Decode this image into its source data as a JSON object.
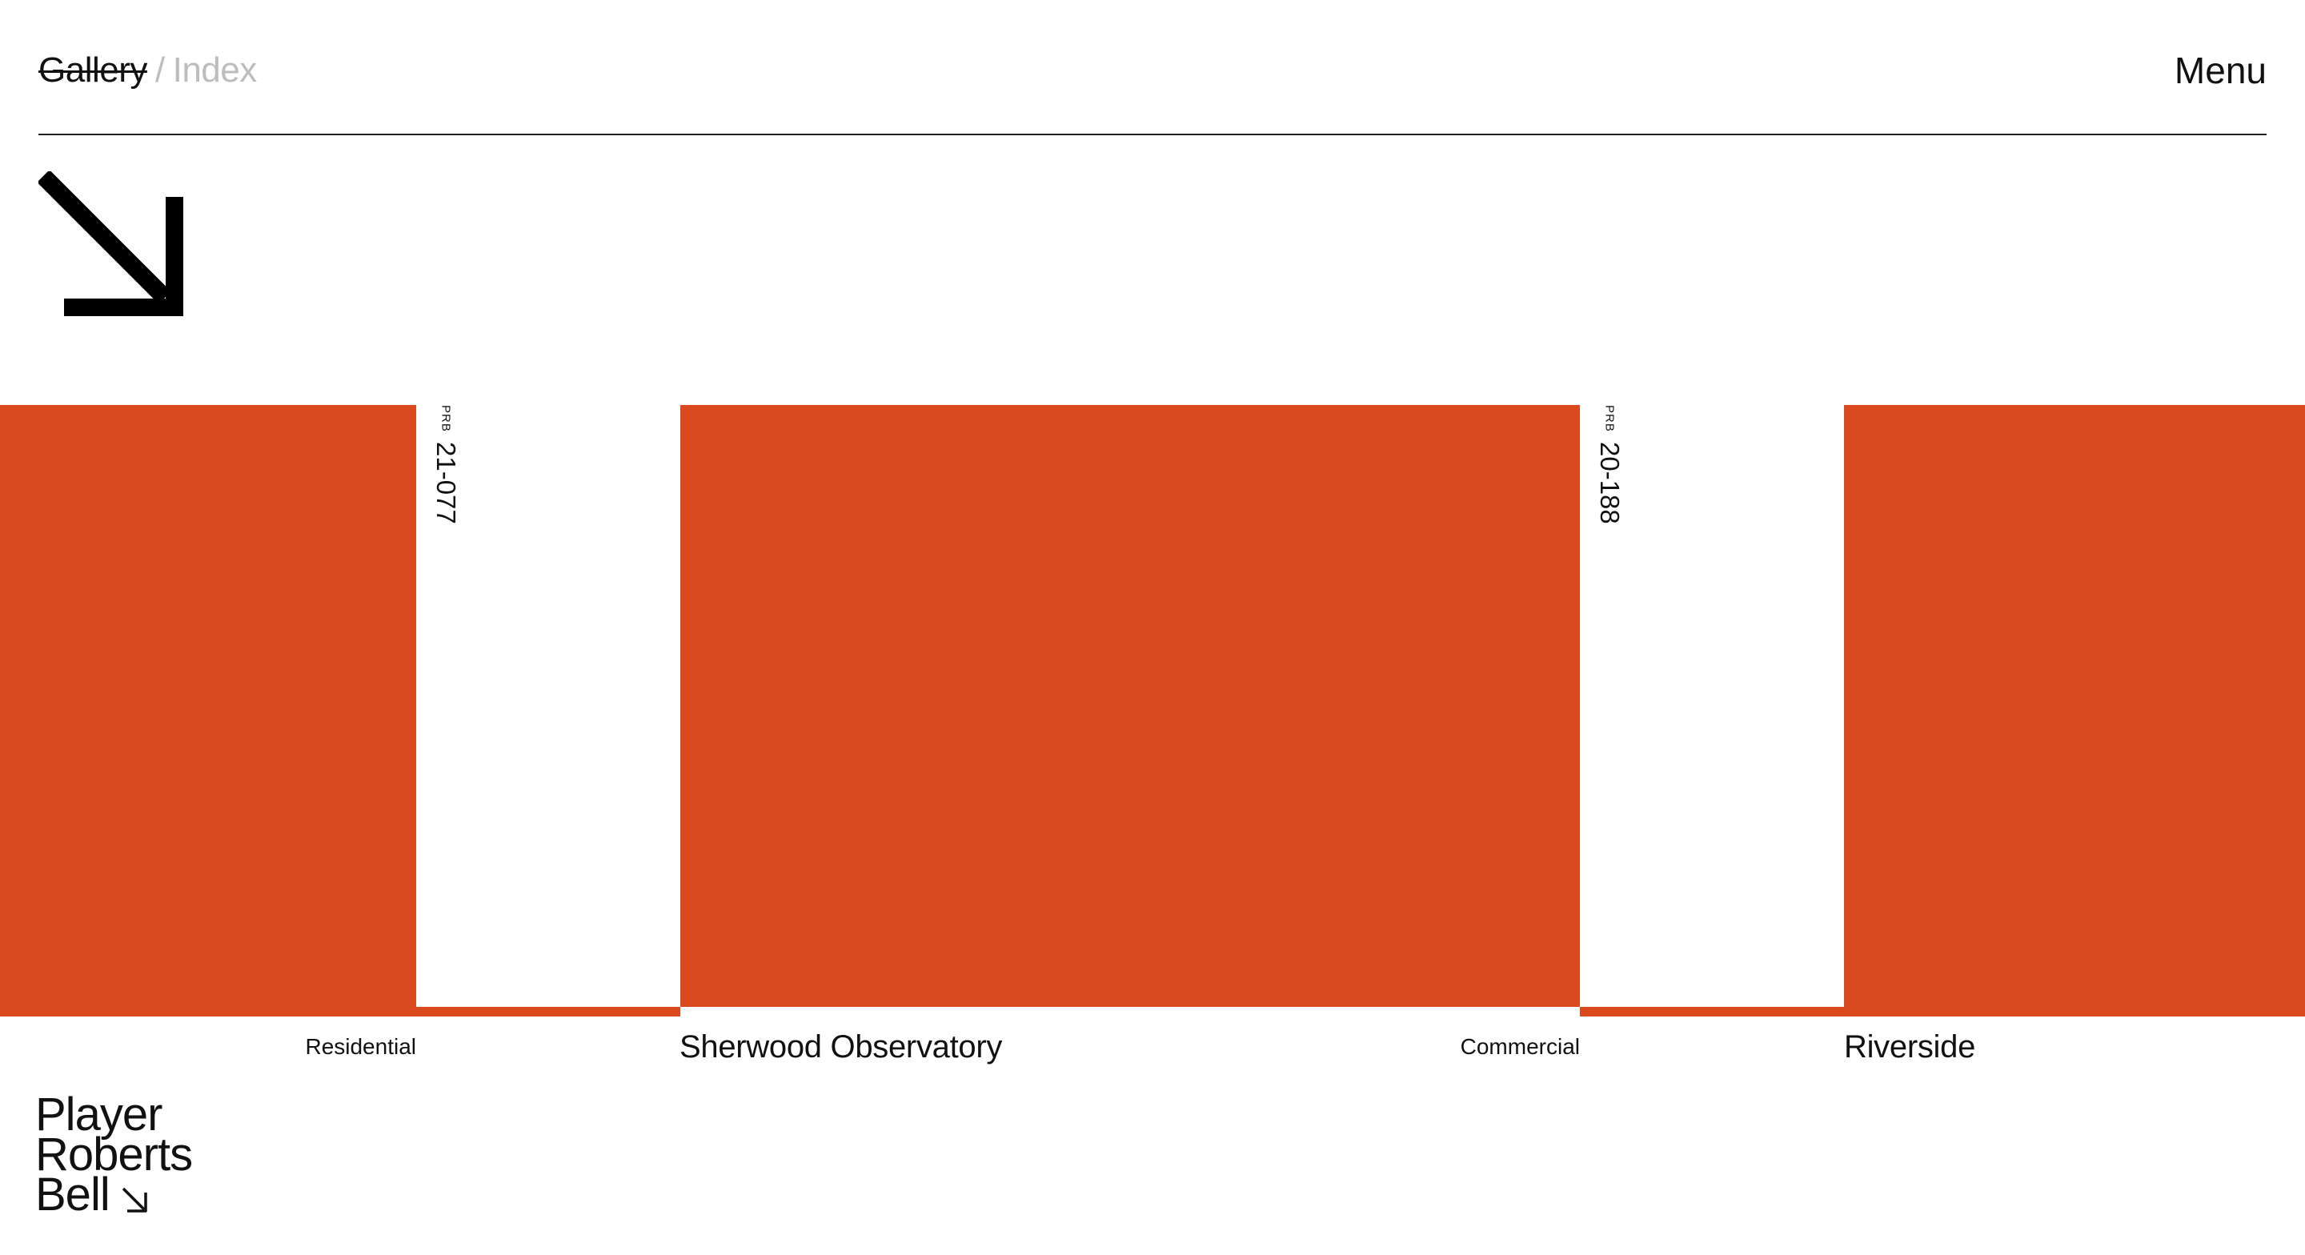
{
  "header": {
    "gallery_label": "Gallery",
    "separator": "/",
    "index_label": "Index",
    "menu_label": "Menu"
  },
  "hero_icon": "arrow-down-right-icon",
  "projects": [
    {
      "category": "Residential",
      "prefix": "PRB",
      "code": "21-077",
      "title": "Sherwood Observatory"
    },
    {
      "category": "Commercial",
      "prefix": "PRB",
      "code": "20-188",
      "title": "Riverside"
    }
  ],
  "logo": {
    "lines": [
      "Player",
      "Roberts",
      "Bell"
    ],
    "icon": "arrow-down-right-icon"
  },
  "colors": {
    "accent": "#db4a1e",
    "text": "#111111",
    "muted": "#bdbdbd",
    "background": "#ffffff"
  }
}
